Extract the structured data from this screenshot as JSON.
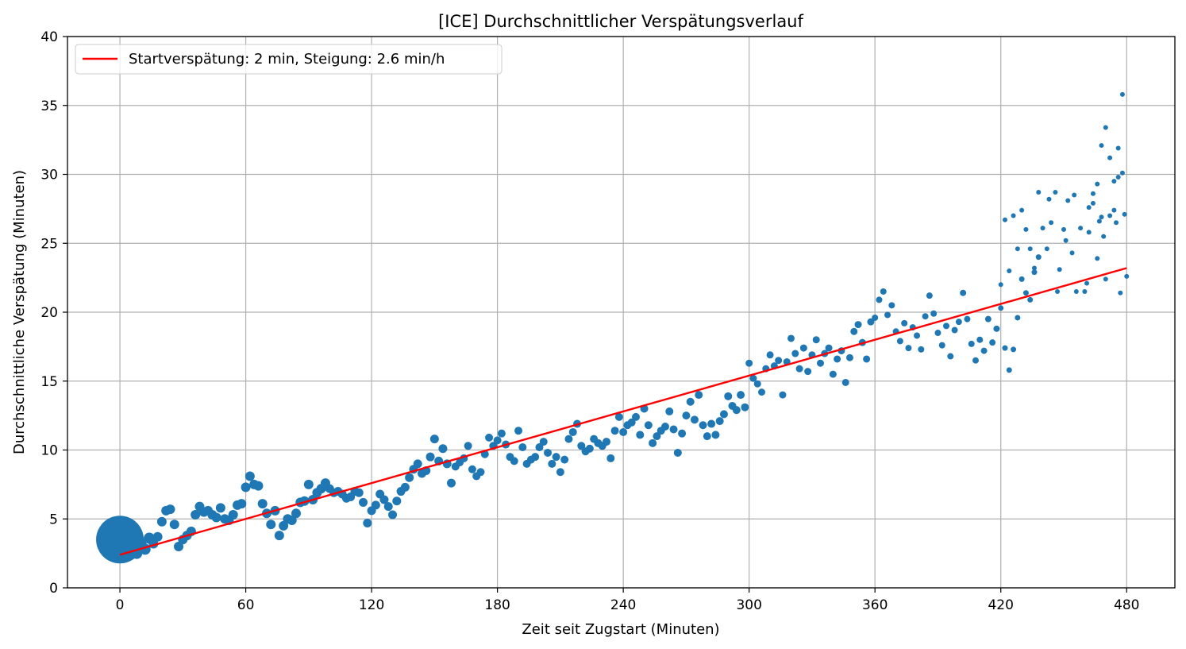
{
  "chart_data": {
    "type": "scatter",
    "title": "[ICE] Durchschnittlicher Verspätungsverlauf",
    "xlabel": "Zeit seit Zugstart (Minuten)",
    "ylabel": "Durchschnittliche Verspätung (Minuten)",
    "xlim": [
      -25,
      503
    ],
    "ylim": [
      0,
      40
    ],
    "xticks": [
      0,
      60,
      120,
      180,
      240,
      300,
      360,
      420,
      480
    ],
    "yticks": [
      0,
      5,
      10,
      15,
      20,
      25,
      30,
      35,
      40
    ],
    "grid": true,
    "legend_position": "top-left",
    "colors": {
      "scatter": "#1f77b4",
      "fit_line": "#ff0000",
      "grid": "#b0b0b0"
    },
    "fit_line": {
      "label": "Startverspätung: 2 min, Steigung: 2.6 min/h",
      "x": [
        0,
        480
      ],
      "y": [
        2.4,
        23.2
      ]
    },
    "scatter_points": [
      [
        0,
        3.5,
        30
      ],
      [
        2,
        3.8,
        9
      ],
      [
        4,
        4.2,
        8
      ],
      [
        6,
        3.0,
        8
      ],
      [
        8,
        2.5,
        7
      ],
      [
        10,
        3.2,
        7
      ],
      [
        12,
        2.8,
        7
      ],
      [
        14,
        3.6,
        7
      ],
      [
        16,
        3.2,
        6
      ],
      [
        18,
        3.7,
        6
      ],
      [
        20,
        4.8,
        6
      ],
      [
        22,
        5.6,
        6
      ],
      [
        24,
        5.7,
        6
      ],
      [
        26,
        4.6,
        6
      ],
      [
        28,
        3.0,
        6
      ],
      [
        30,
        3.5,
        6
      ],
      [
        32,
        3.8,
        6
      ],
      [
        34,
        4.1,
        6
      ],
      [
        36,
        5.3,
        6
      ],
      [
        38,
        5.9,
        6
      ],
      [
        40,
        5.5,
        6
      ],
      [
        42,
        5.6,
        6
      ],
      [
        44,
        5.3,
        6
      ],
      [
        46,
        5.1,
        6
      ],
      [
        48,
        5.8,
        6
      ],
      [
        50,
        5.0,
        6
      ],
      [
        52,
        4.9,
        6
      ],
      [
        54,
        5.3,
        6
      ],
      [
        56,
        6.0,
        6
      ],
      [
        58,
        6.1,
        6
      ],
      [
        60,
        7.3,
        6
      ],
      [
        62,
        8.1,
        6
      ],
      [
        64,
        7.5,
        6
      ],
      [
        66,
        7.4,
        6
      ],
      [
        68,
        6.1,
        6
      ],
      [
        70,
        5.4,
        6
      ],
      [
        72,
        4.6,
        6
      ],
      [
        74,
        5.6,
        6
      ],
      [
        76,
        3.8,
        6
      ],
      [
        78,
        4.5,
        6
      ],
      [
        80,
        5.0,
        6
      ],
      [
        82,
        4.9,
        6
      ],
      [
        84,
        5.4,
        6
      ],
      [
        86,
        6.2,
        6
      ],
      [
        88,
        6.3,
        6
      ],
      [
        90,
        7.5,
        6
      ],
      [
        92,
        6.4,
        6
      ],
      [
        94,
        6.9,
        6
      ],
      [
        96,
        7.2,
        6
      ],
      [
        98,
        7.6,
        6
      ],
      [
        100,
        7.2,
        5.5
      ],
      [
        102,
        6.9,
        5.5
      ],
      [
        104,
        7.0,
        5.5
      ],
      [
        106,
        6.8,
        5.5
      ],
      [
        108,
        6.5,
        5.5
      ],
      [
        110,
        6.6,
        5.5
      ],
      [
        112,
        7.0,
        5.5
      ],
      [
        114,
        6.9,
        5.5
      ],
      [
        116,
        6.2,
        5.5
      ],
      [
        118,
        4.7,
        5.5
      ],
      [
        120,
        5.6,
        5.5
      ],
      [
        122,
        6.0,
        5.5
      ],
      [
        124,
        6.8,
        5.5
      ],
      [
        126,
        6.4,
        5.5
      ],
      [
        128,
        5.9,
        5.5
      ],
      [
        130,
        5.3,
        5.5
      ],
      [
        132,
        6.3,
        5.5
      ],
      [
        134,
        7.0,
        5.5
      ],
      [
        136,
        7.3,
        5.5
      ],
      [
        138,
        8.0,
        5.5
      ],
      [
        140,
        8.6,
        5.5
      ],
      [
        142,
        9.0,
        5.5
      ],
      [
        144,
        8.3,
        5.5
      ],
      [
        146,
        8.5,
        5.5
      ],
      [
        148,
        9.5,
        5.5
      ],
      [
        150,
        10.8,
        5.5
      ],
      [
        152,
        9.2,
        5.5
      ],
      [
        154,
        10.1,
        5.5
      ],
      [
        156,
        9.0,
        5.5
      ],
      [
        158,
        7.6,
        5.5
      ],
      [
        160,
        8.8,
        5
      ],
      [
        162,
        9.1,
        5
      ],
      [
        164,
        9.4,
        5
      ],
      [
        166,
        10.3,
        5
      ],
      [
        168,
        8.6,
        5
      ],
      [
        170,
        8.1,
        5
      ],
      [
        172,
        8.4,
        5
      ],
      [
        174,
        9.7,
        5
      ],
      [
        176,
        10.9,
        5
      ],
      [
        178,
        10.3,
        5
      ],
      [
        180,
        10.7,
        5
      ],
      [
        182,
        11.2,
        5
      ],
      [
        184,
        10.4,
        5
      ],
      [
        186,
        9.5,
        5
      ],
      [
        188,
        9.2,
        5
      ],
      [
        190,
        11.4,
        5
      ],
      [
        192,
        10.2,
        5
      ],
      [
        194,
        9.0,
        5
      ],
      [
        196,
        9.3,
        5
      ],
      [
        198,
        9.5,
        5
      ],
      [
        200,
        10.2,
        5
      ],
      [
        202,
        10.6,
        5
      ],
      [
        204,
        9.8,
        5
      ],
      [
        206,
        9.0,
        5
      ],
      [
        208,
        9.5,
        5
      ],
      [
        210,
        8.4,
        5
      ],
      [
        212,
        9.3,
        5
      ],
      [
        214,
        10.8,
        5
      ],
      [
        216,
        11.3,
        5
      ],
      [
        218,
        11.9,
        5
      ],
      [
        220,
        10.3,
        5
      ],
      [
        222,
        9.9,
        5
      ],
      [
        224,
        10.1,
        5
      ],
      [
        226,
        10.8,
        5
      ],
      [
        228,
        10.5,
        5
      ],
      [
        230,
        10.3,
        5
      ],
      [
        232,
        10.6,
        5
      ],
      [
        234,
        9.4,
        5
      ],
      [
        236,
        11.4,
        5
      ],
      [
        238,
        12.4,
        5
      ],
      [
        240,
        11.3,
        5
      ],
      [
        242,
        11.8,
        5
      ],
      [
        244,
        12.0,
        5
      ],
      [
        246,
        12.4,
        5
      ],
      [
        248,
        11.1,
        5
      ],
      [
        250,
        13.0,
        5
      ],
      [
        252,
        11.8,
        5
      ],
      [
        254,
        10.5,
        5
      ],
      [
        256,
        11.0,
        5
      ],
      [
        258,
        11.4,
        5
      ],
      [
        260,
        11.7,
        5
      ],
      [
        262,
        12.8,
        5
      ],
      [
        264,
        11.5,
        5
      ],
      [
        266,
        9.8,
        5
      ],
      [
        268,
        11.2,
        5
      ],
      [
        270,
        12.5,
        5
      ],
      [
        272,
        13.5,
        5
      ],
      [
        274,
        12.2,
        5
      ],
      [
        276,
        14.0,
        5
      ],
      [
        278,
        11.8,
        5
      ],
      [
        280,
        11.0,
        5
      ],
      [
        282,
        11.9,
        5
      ],
      [
        284,
        11.1,
        5
      ],
      [
        286,
        12.1,
        5
      ],
      [
        288,
        12.6,
        5
      ],
      [
        290,
        13.9,
        5
      ],
      [
        292,
        13.2,
        5
      ],
      [
        294,
        12.9,
        5
      ],
      [
        296,
        14.0,
        5
      ],
      [
        298,
        13.1,
        5
      ],
      [
        300,
        16.3,
        4.5
      ],
      [
        302,
        15.2,
        4.5
      ],
      [
        304,
        14.8,
        4.5
      ],
      [
        306,
        14.2,
        4.5
      ],
      [
        308,
        15.9,
        4.5
      ],
      [
        310,
        16.9,
        4.5
      ],
      [
        312,
        16.1,
        4.5
      ],
      [
        314,
        16.5,
        4.5
      ],
      [
        316,
        14.0,
        4.5
      ],
      [
        318,
        16.4,
        4.5
      ],
      [
        320,
        18.1,
        4.5
      ],
      [
        322,
        17.0,
        4.5
      ],
      [
        324,
        15.9,
        4.5
      ],
      [
        326,
        17.4,
        4.5
      ],
      [
        328,
        15.7,
        4.5
      ],
      [
        330,
        16.9,
        4.5
      ],
      [
        332,
        18.0,
        4.5
      ],
      [
        334,
        16.3,
        4.5
      ],
      [
        336,
        17.0,
        4.5
      ],
      [
        338,
        17.4,
        4.5
      ],
      [
        340,
        15.5,
        4.5
      ],
      [
        342,
        16.6,
        4.5
      ],
      [
        344,
        17.2,
        4.5
      ],
      [
        346,
        14.9,
        4.5
      ],
      [
        348,
        16.7,
        4.5
      ],
      [
        350,
        18.6,
        4.5
      ],
      [
        352,
        19.1,
        4.5
      ],
      [
        354,
        17.8,
        4.5
      ],
      [
        356,
        16.6,
        4.5
      ],
      [
        358,
        19.3,
        4.5
      ],
      [
        360,
        19.6,
        4
      ],
      [
        362,
        20.9,
        4
      ],
      [
        364,
        21.5,
        4
      ],
      [
        366,
        19.8,
        4
      ],
      [
        368,
        20.5,
        4
      ],
      [
        370,
        18.6,
        4
      ],
      [
        372,
        17.9,
        4
      ],
      [
        374,
        19.2,
        4
      ],
      [
        376,
        17.4,
        4
      ],
      [
        378,
        18.9,
        4
      ],
      [
        380,
        18.3,
        4
      ],
      [
        382,
        17.3,
        4
      ],
      [
        384,
        19.7,
        4
      ],
      [
        386,
        21.2,
        4
      ],
      [
        388,
        19.9,
        4
      ],
      [
        390,
        18.5,
        4
      ],
      [
        392,
        17.6,
        4
      ],
      [
        394,
        19.0,
        4
      ],
      [
        396,
        16.8,
        4
      ],
      [
        398,
        18.7,
        4
      ],
      [
        400,
        19.3,
        4
      ],
      [
        402,
        21.4,
        4
      ],
      [
        404,
        19.5,
        4
      ],
      [
        406,
        17.7,
        4
      ],
      [
        408,
        16.5,
        4
      ],
      [
        410,
        18.0,
        4
      ],
      [
        412,
        17.2,
        4
      ],
      [
        414,
        19.5,
        4
      ],
      [
        416,
        17.8,
        4
      ],
      [
        418,
        18.8,
        4
      ],
      [
        420,
        20.3,
        3.5
      ],
      [
        422,
        17.4,
        3.5
      ],
      [
        424,
        15.8,
        3.5
      ],
      [
        426,
        17.3,
        3.5
      ],
      [
        428,
        19.6,
        3.5
      ],
      [
        430,
        22.4,
        3.5
      ],
      [
        432,
        21.4,
        3.5
      ],
      [
        434,
        20.9,
        3.5
      ],
      [
        436,
        22.9,
        3.5
      ],
      [
        438,
        24.0,
        3.5
      ],
      [
        420,
        22.0,
        3
      ],
      [
        422,
        26.7,
        3
      ],
      [
        424,
        23.0,
        3
      ],
      [
        426,
        27.0,
        3
      ],
      [
        428,
        24.6,
        3
      ],
      [
        430,
        27.4,
        3
      ],
      [
        432,
        26.0,
        3
      ],
      [
        434,
        24.6,
        3
      ],
      [
        436,
        23.2,
        3
      ],
      [
        438,
        28.7,
        3
      ],
      [
        440,
        26.1,
        3
      ],
      [
        442,
        24.6,
        3
      ],
      [
        444,
        26.5,
        3
      ],
      [
        446,
        28.7,
        3
      ],
      [
        448,
        23.1,
        3
      ],
      [
        450,
        26.0,
        3
      ],
      [
        452,
        28.1,
        3
      ],
      [
        454,
        24.3,
        3
      ],
      [
        456,
        21.5,
        3
      ],
      [
        458,
        26.1,
        3
      ],
      [
        460,
        21.5,
        3
      ],
      [
        462,
        25.8,
        3
      ],
      [
        464,
        27.9,
        3
      ],
      [
        466,
        23.9,
        3
      ],
      [
        468,
        26.9,
        3
      ],
      [
        470,
        22.4,
        3
      ],
      [
        472,
        31.2,
        3
      ],
      [
        474,
        27.4,
        3
      ],
      [
        476,
        29.8,
        3
      ],
      [
        478,
        30.1,
        3
      ],
      [
        461,
        22.1,
        3
      ],
      [
        462,
        27.6,
        3
      ],
      [
        464,
        28.6,
        3
      ],
      [
        466,
        29.3,
        3
      ],
      [
        467,
        26.6,
        3
      ],
      [
        468,
        32.1,
        3
      ],
      [
        469,
        25.5,
        3
      ],
      [
        470,
        33.4,
        3
      ],
      [
        472,
        27.0,
        3
      ],
      [
        474,
        29.5,
        3
      ],
      [
        475,
        26.5,
        3
      ],
      [
        476,
        31.9,
        3
      ],
      [
        477,
        21.4,
        3
      ],
      [
        478,
        35.8,
        3
      ],
      [
        479,
        27.1,
        3
      ],
      [
        480,
        22.6,
        3
      ],
      [
        443,
        28.2,
        3
      ],
      [
        447,
        21.5,
        3
      ],
      [
        451,
        25.2,
        3
      ],
      [
        455,
        28.5,
        3
      ]
    ]
  }
}
